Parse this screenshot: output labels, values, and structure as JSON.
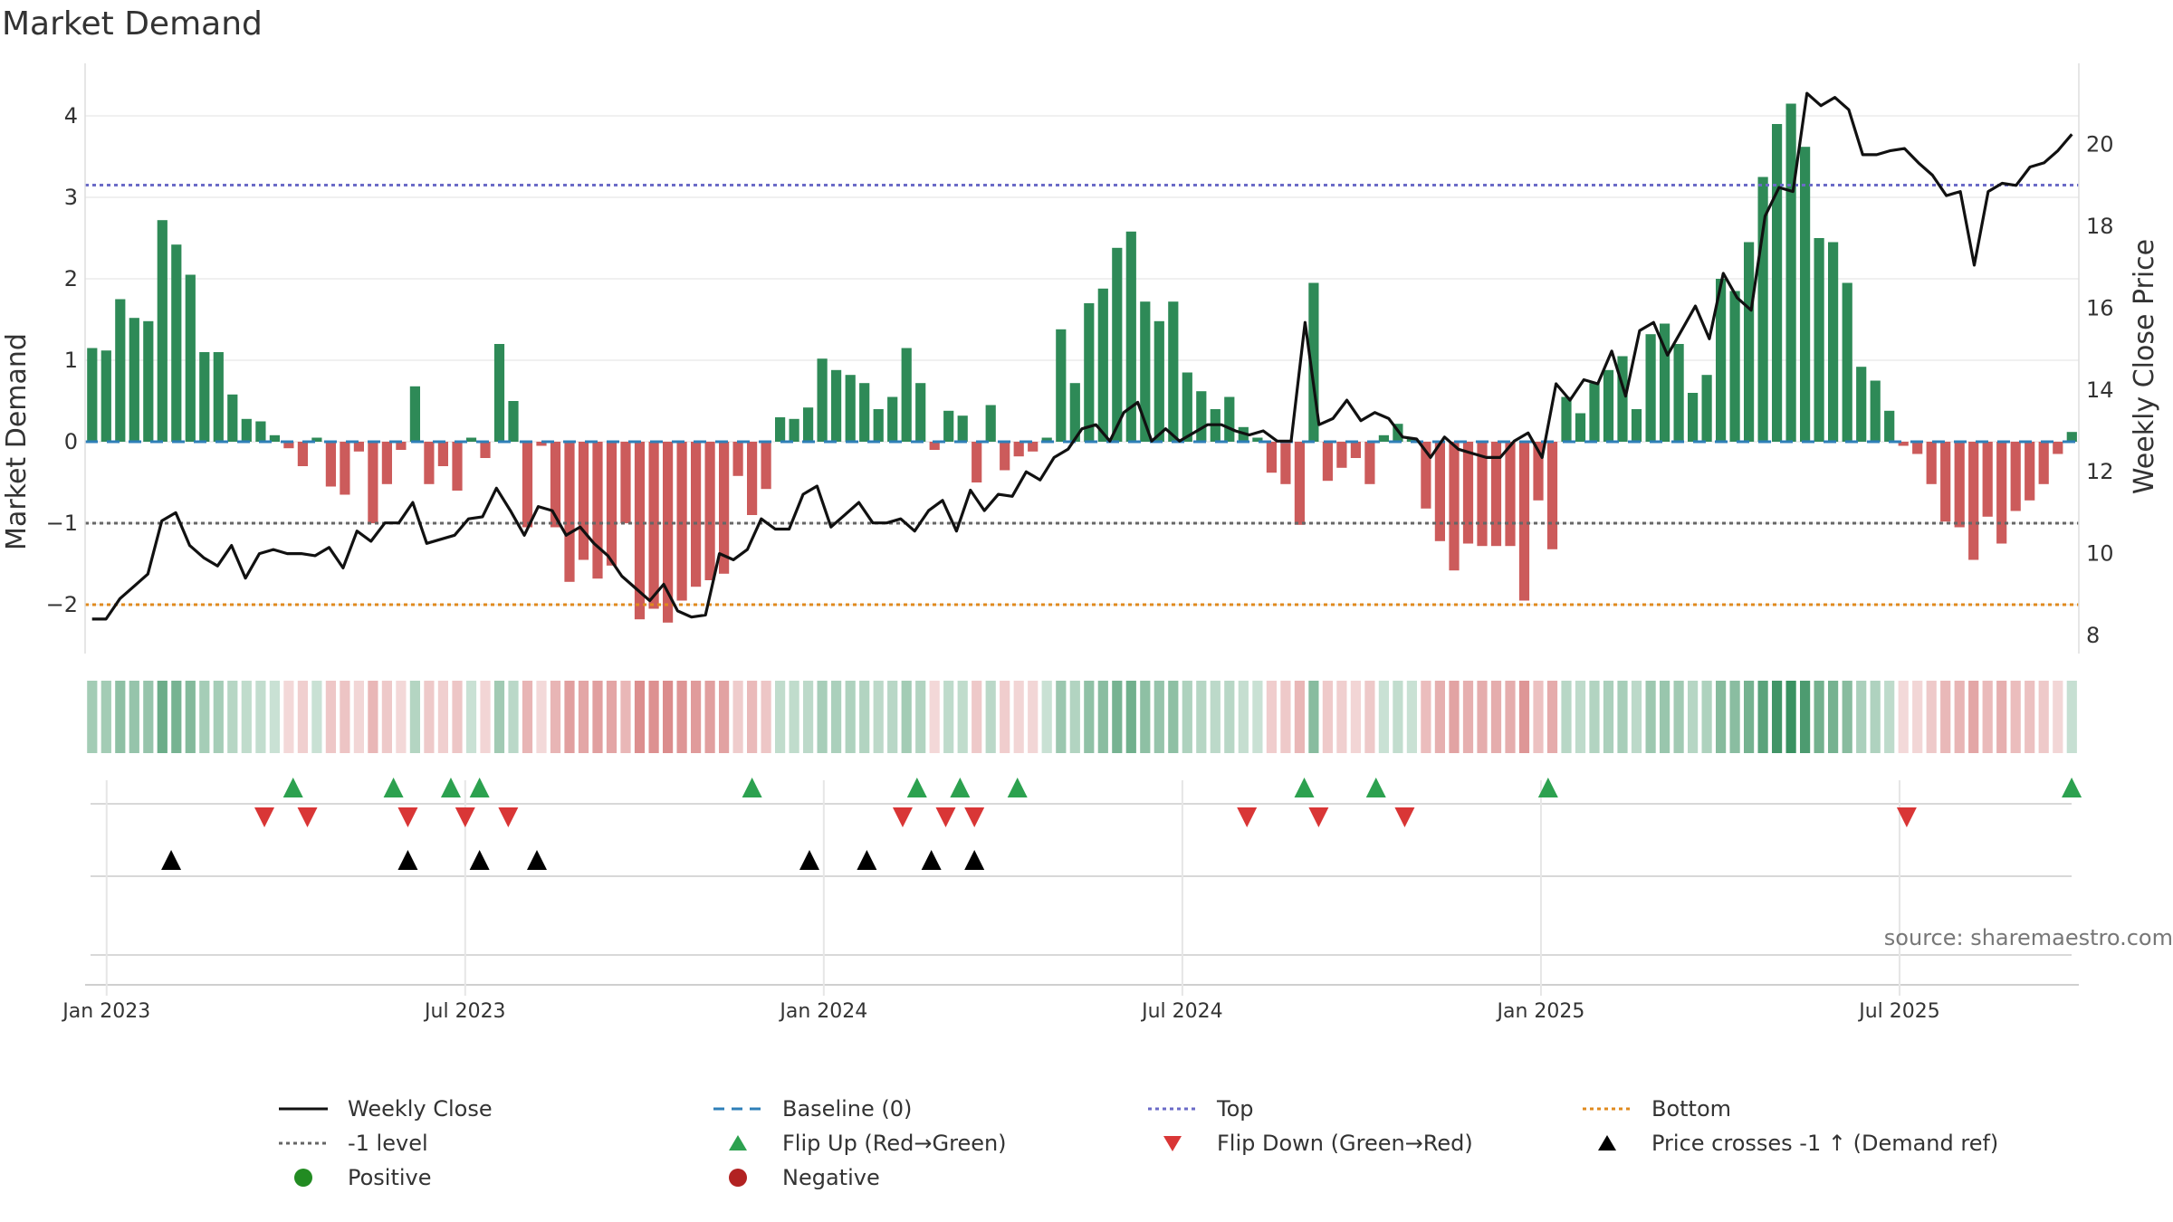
{
  "chart_data": {
    "type": "bar",
    "title": "Market Demand",
    "ylabel": "Market Demand",
    "y2label": "Weekly Close Price",
    "ylim": [
      -2.6,
      4.5
    ],
    "y2lim": [
      7.6,
      22.2
    ],
    "yticks": [
      "4",
      "3",
      "2",
      "1",
      "0",
      "−1",
      "−2"
    ],
    "y2ticks": [
      "20",
      "18",
      "16",
      "14",
      "12",
      "10",
      "8"
    ],
    "xticks": [
      "Jan 2023",
      "Jul 2023",
      "Jan 2024",
      "Jul 2024",
      "Jan 2025",
      "Jul 2025"
    ],
    "reference_lines": {
      "top": 3.15,
      "minus_one": -1.0,
      "bottom": -2.0,
      "baseline": 0
    },
    "demand": [
      1.15,
      1.12,
      1.75,
      1.52,
      1.48,
      2.72,
      2.42,
      2.05,
      1.1,
      1.1,
      0.58,
      0.28,
      0.25,
      0.08,
      -0.08,
      -0.3,
      0.05,
      -0.55,
      -0.65,
      -0.12,
      -1.0,
      -0.52,
      -0.1,
      0.68,
      -0.52,
      -0.3,
      -0.6,
      0.05,
      -0.2,
      1.2,
      0.5,
      -1.05,
      -0.05,
      -1.05,
      -1.72,
      -1.45,
      -1.68,
      -1.52,
      -1.0,
      -2.18,
      -2.05,
      -2.22,
      -1.95,
      -1.78,
      -1.7,
      -1.62,
      -0.42,
      -0.9,
      -0.58,
      0.3,
      0.28,
      0.42,
      1.02,
      0.88,
      0.82,
      0.72,
      0.4,
      0.55,
      1.15,
      0.72,
      -0.1,
      0.38,
      0.32,
      -0.5,
      0.45,
      -0.35,
      -0.18,
      -0.12,
      0.05,
      1.38,
      0.72,
      1.7,
      1.88,
      2.38,
      2.58,
      1.72,
      1.48,
      1.72,
      0.85,
      0.62,
      0.4,
      0.55,
      0.18,
      0.05,
      -0.38,
      -0.52,
      -1.02,
      1.95,
      -0.48,
      -0.32,
      -0.2,
      -0.52,
      0.08,
      0.22,
      0.05,
      -0.82,
      -1.22,
      -1.58,
      -1.25,
      -1.28,
      -1.28,
      -1.28,
      -1.95,
      -0.72,
      -1.32,
      0.55,
      0.35,
      0.72,
      0.88,
      1.05,
      0.4,
      1.32,
      1.45,
      1.2,
      0.6,
      0.82,
      2.0,
      1.85,
      2.45,
      3.25,
      3.9,
      4.15,
      3.62,
      2.5,
      2.45,
      1.95,
      0.92,
      0.75,
      0.38,
      -0.05,
      -0.15,
      -0.52,
      -0.98,
      -1.05,
      -1.45,
      -0.92,
      -1.25,
      -0.85,
      -0.72,
      -0.52,
      -0.15,
      0.12
    ],
    "weekly_close": [
      8.4,
      8.4,
      8.9,
      9.2,
      9.5,
      10.8,
      11.0,
      10.2,
      9.9,
      9.7,
      10.2,
      9.4,
      10.0,
      10.1,
      10.0,
      10.0,
      9.95,
      10.15,
      9.65,
      10.55,
      10.3,
      10.75,
      10.75,
      11.25,
      10.25,
      10.35,
      10.45,
      10.85,
      10.9,
      11.6,
      11.05,
      10.45,
      11.15,
      11.05,
      10.45,
      10.65,
      10.25,
      9.95,
      9.45,
      9.15,
      8.85,
      9.25,
      8.6,
      8.45,
      8.5,
      10.0,
      9.85,
      10.1,
      10.85,
      10.6,
      10.6,
      11.45,
      11.65,
      10.65,
      10.95,
      11.25,
      10.75,
      10.75,
      10.85,
      10.55,
      11.05,
      11.3,
      10.55,
      11.55,
      11.05,
      11.45,
      11.4,
      12.0,
      11.8,
      12.35,
      12.55,
      13.05,
      13.15,
      12.75,
      13.45,
      13.7,
      12.75,
      13.05,
      12.75,
      12.95,
      13.15,
      13.15,
      13.0,
      12.9,
      13.0,
      12.75,
      12.75,
      15.65,
      13.15,
      13.3,
      13.75,
      13.25,
      13.45,
      13.3,
      12.85,
      12.8,
      12.35,
      12.85,
      12.55,
      12.45,
      12.35,
      12.35,
      12.75,
      12.95,
      12.35,
      14.15,
      13.75,
      14.25,
      14.15,
      14.95,
      13.85,
      15.45,
      15.65,
      14.85,
      15.45,
      16.05,
      15.25,
      16.85,
      16.25,
      15.95,
      18.25,
      18.95,
      18.85,
      21.25,
      20.95,
      21.15,
      20.85,
      19.75,
      19.75,
      19.85,
      19.9,
      19.55,
      19.25,
      18.75,
      18.85,
      17.05,
      18.85,
      19.05,
      19.0,
      19.45,
      19.55,
      19.85,
      20.25
    ],
    "flip_up_x": [
      2023.26,
      2023.4,
      2023.48,
      2023.52,
      2023.9,
      2024.13,
      2024.19,
      2024.27,
      2024.67,
      2024.77,
      2025.01,
      2025.74
    ],
    "flip_down_x": [
      2023.22,
      2023.28,
      2023.42,
      2023.5,
      2023.56,
      2024.11,
      2024.17,
      2024.21,
      2024.59,
      2024.69,
      2024.81,
      2025.51
    ],
    "price_cross_x": [
      2023.09,
      2023.42,
      2023.52,
      2023.6,
      2023.98,
      2024.06,
      2024.15,
      2024.21
    ],
    "x_start": 2022.97,
    "x_end": 2025.75
  },
  "labels": {
    "title": "Market Demand",
    "source": "source: sharemaestro.com"
  },
  "legend": [
    {
      "key": "weekly-close",
      "label": "Weekly Close"
    },
    {
      "key": "baseline",
      "label": "Baseline (0)"
    },
    {
      "key": "top",
      "label": "Top"
    },
    {
      "key": "bottom",
      "label": "Bottom"
    },
    {
      "key": "minus-one",
      "label": "-1 level"
    },
    {
      "key": "flip-up",
      "label": "Flip Up (Red→Green)"
    },
    {
      "key": "flip-down",
      "label": "Flip Down (Green→Red)"
    },
    {
      "key": "price-cross",
      "label": "Price crosses -1 ↑ (Demand ref)"
    },
    {
      "key": "positive",
      "label": "Positive"
    },
    {
      "key": "negative",
      "label": "Negative"
    }
  ],
  "colors": {
    "positive_bar": "#2e8a57",
    "negative_bar": "#cc5b5b",
    "price_line": "#111111",
    "baseline": "#2f7fb8",
    "top": "#6b6bc7",
    "bottom": "#e08a1e",
    "minus_one": "#666666",
    "flip_up": "#2ca14f",
    "flip_down": "#d93636",
    "cross": "#000000",
    "positive_dot": "#228b22",
    "negative_dot": "#b22222"
  }
}
